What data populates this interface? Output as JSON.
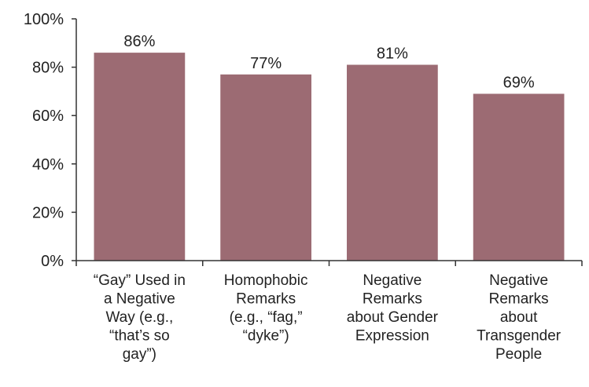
{
  "chart_data": {
    "type": "bar",
    "categories": [
      [
        "“Gay” Used in",
        "a Negative",
        "Way (e.g.,",
        "“that’s so",
        "gay”)"
      ],
      [
        "Homophobic",
        "Remarks",
        "(e.g., “fag,”",
        "“dyke”)"
      ],
      [
        "Negative",
        "Remarks",
        "about Gender",
        "Expression"
      ],
      [
        "Negative",
        "Remarks",
        "about",
        "Transgender",
        "People"
      ]
    ],
    "values": [
      86,
      77,
      81,
      69
    ],
    "data_labels": [
      "86%",
      "77%",
      "81%",
      "69%"
    ],
    "ylim": [
      0,
      100
    ],
    "yticks": [
      "0%",
      "20%",
      "40%",
      "60%",
      "80%",
      "100%"
    ],
    "ytick_values": [
      0,
      20,
      40,
      60,
      80,
      100
    ],
    "bar_color": "#9c6b73",
    "grid": false,
    "title": "",
    "xlabel": "",
    "ylabel": ""
  }
}
